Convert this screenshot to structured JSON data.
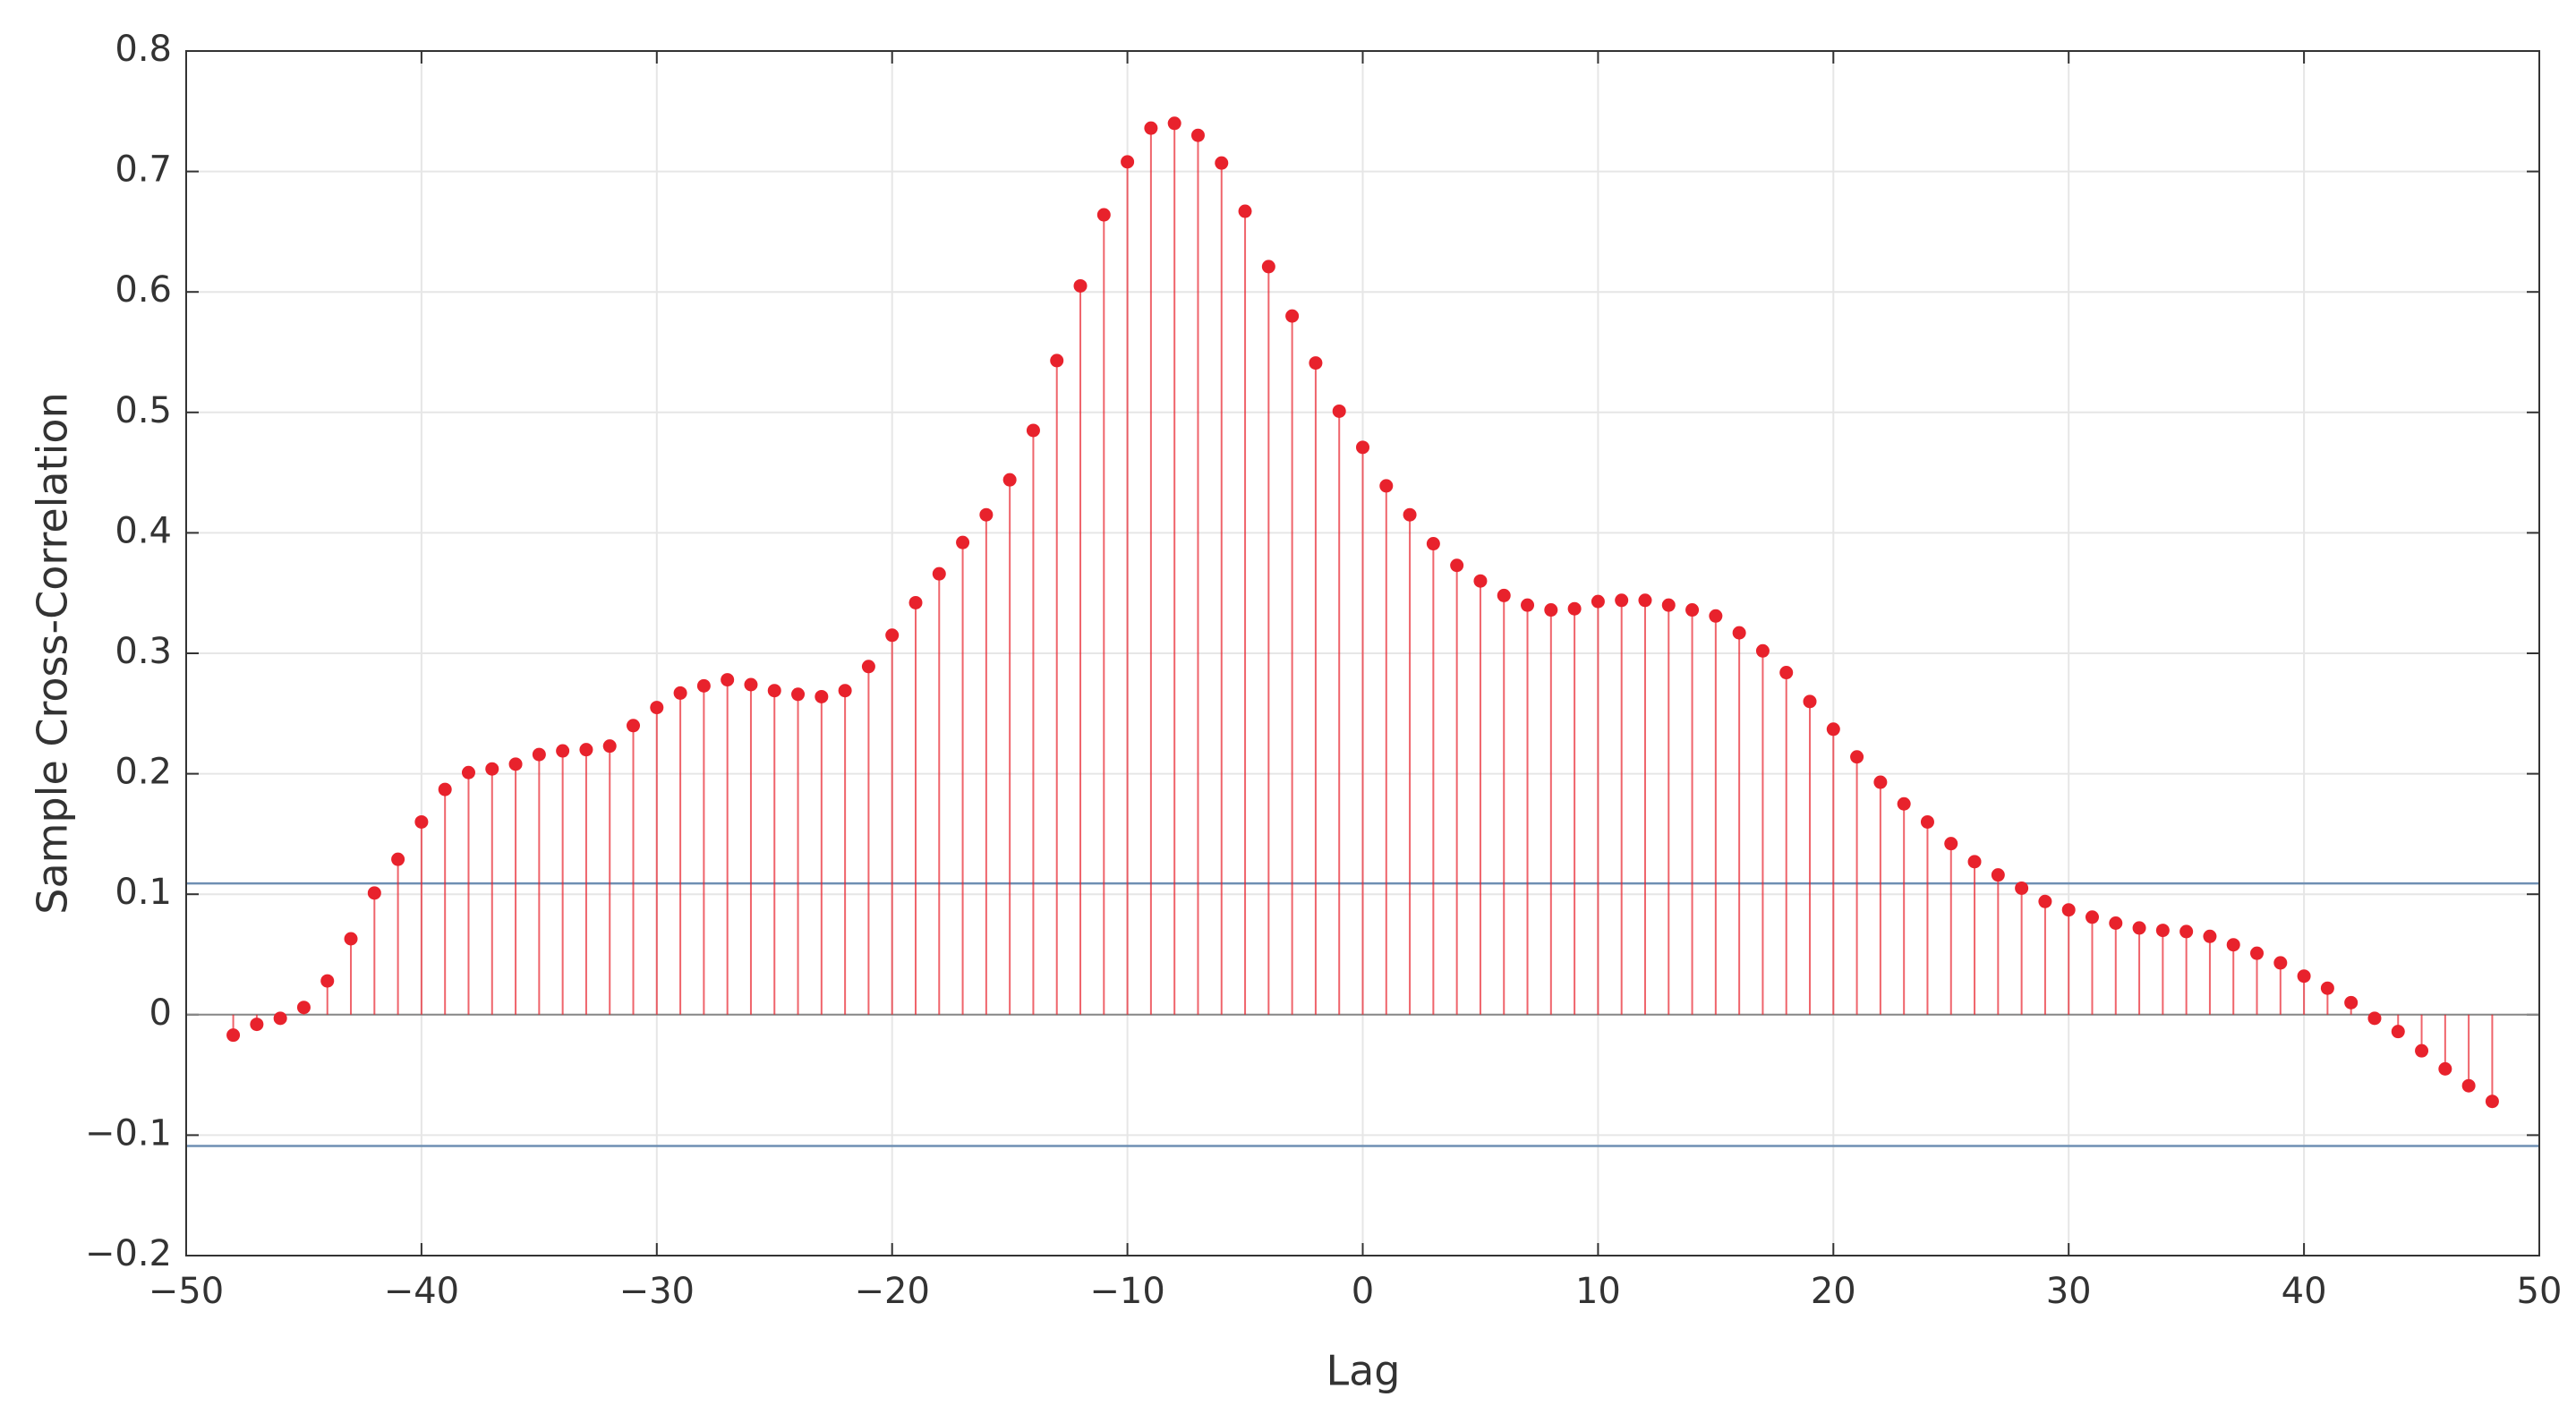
{
  "chart_data": {
    "type": "stem",
    "xlabel": "Lag",
    "ylabel": "Sample Cross-Correlation",
    "x": [
      -48,
      -47,
      -46,
      -45,
      -44,
      -43,
      -42,
      -41,
      -40,
      -39,
      -38,
      -37,
      -36,
      -35,
      -34,
      -33,
      -32,
      -31,
      -30,
      -29,
      -28,
      -27,
      -26,
      -25,
      -24,
      -23,
      -22,
      -21,
      -20,
      -19,
      -18,
      -17,
      -16,
      -15,
      -14,
      -13,
      -12,
      -11,
      -10,
      -9,
      -8,
      -7,
      -6,
      -5,
      -4,
      -3,
      -2,
      -1,
      0,
      1,
      2,
      3,
      4,
      5,
      6,
      7,
      8,
      9,
      10,
      11,
      12,
      13,
      14,
      15,
      16,
      17,
      18,
      19,
      20,
      21,
      22,
      23,
      24,
      25,
      26,
      27,
      28,
      29,
      30,
      31,
      32,
      33,
      34,
      35,
      36,
      37,
      38,
      39,
      40,
      41,
      42,
      43,
      44,
      45,
      46,
      47,
      48
    ],
    "values": [
      -0.017,
      -0.008,
      -0.003,
      0.006,
      0.028,
      0.063,
      0.101,
      0.129,
      0.16,
      0.187,
      0.201,
      0.204,
      0.208,
      0.216,
      0.219,
      0.22,
      0.223,
      0.24,
      0.255,
      0.267,
      0.273,
      0.278,
      0.274,
      0.269,
      0.266,
      0.264,
      0.269,
      0.289,
      0.315,
      0.342,
      0.366,
      0.392,
      0.415,
      0.444,
      0.485,
      0.543,
      0.605,
      0.664,
      0.708,
      0.736,
      0.74,
      0.73,
      0.707,
      0.667,
      0.621,
      0.58,
      0.541,
      0.501,
      0.471,
      0.439,
      0.415,
      0.391,
      0.373,
      0.36,
      0.348,
      0.34,
      0.336,
      0.337,
      0.343,
      0.344,
      0.344,
      0.34,
      0.336,
      0.331,
      0.317,
      0.302,
      0.284,
      0.26,
      0.237,
      0.214,
      0.193,
      0.175,
      0.16,
      0.142,
      0.127,
      0.116,
      0.105,
      0.094,
      0.087,
      0.081,
      0.076,
      0.072,
      0.07,
      0.069,
      0.065,
      0.058,
      0.051,
      0.043,
      0.032,
      0.022,
      0.01,
      -0.003,
      -0.014,
      -0.03,
      -0.045,
      -0.059,
      -0.072
    ],
    "color": "#e8222c",
    "bounds": [
      0.109,
      -0.109
    ],
    "bounds_color": "#6f8fb3",
    "xlim": [
      -50,
      50
    ],
    "xticks": [
      {
        "value": -50,
        "label": "−50"
      },
      {
        "value": -40,
        "label": "−40"
      },
      {
        "value": -30,
        "label": "−30"
      },
      {
        "value": -20,
        "label": "−20"
      },
      {
        "value": -10,
        "label": "−10"
      },
      0,
      10,
      20,
      30,
      40,
      50
    ],
    "ylim": [
      -0.2,
      0.8
    ],
    "yticks": [
      {
        "value": -0.2,
        "label": "−0.2"
      },
      {
        "value": -0.1,
        "label": "−0.1"
      },
      0,
      0.1,
      0.2,
      0.3,
      0.4,
      0.5,
      0.6,
      0.7,
      0.8
    ],
    "grid": true
  }
}
